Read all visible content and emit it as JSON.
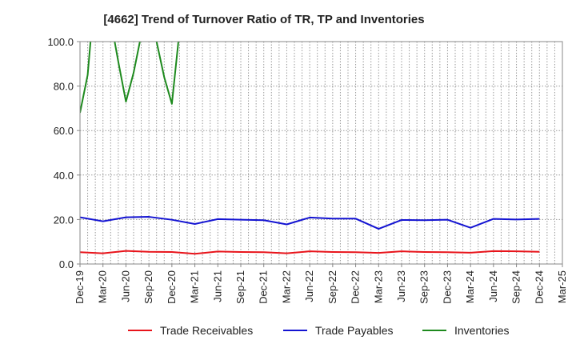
{
  "chart_data": {
    "type": "line",
    "title": "[4662]  Trend of Turnover Ratio of TR, TP and Inventories",
    "xlabel": "",
    "ylabel": "",
    "ylim": [
      0,
      100
    ],
    "yticks": [
      "0.0",
      "20.0",
      "40.0",
      "60.0",
      "80.0",
      "100.0"
    ],
    "x": [
      "Dec-19",
      "Jan-20",
      "Feb-20",
      "Mar-20",
      "Apr-20",
      "May-20",
      "Jun-20",
      "Jul-20",
      "Aug-20",
      "Sep-20",
      "Oct-20",
      "Nov-20",
      "Dec-20",
      "Jan-21",
      "Feb-21",
      "Mar-21",
      "Apr-21",
      "May-21",
      "Jun-21",
      "Jul-21",
      "Aug-21",
      "Sep-21",
      "Oct-21",
      "Nov-21",
      "Dec-21",
      "Jan-22",
      "Feb-22",
      "Mar-22",
      "Apr-22",
      "May-22",
      "Jun-22",
      "Jul-22",
      "Aug-22",
      "Sep-22",
      "Oct-22",
      "Nov-22",
      "Dec-22",
      "Jan-23",
      "Feb-23",
      "Mar-23",
      "Apr-23",
      "May-23",
      "Jun-23",
      "Jul-23",
      "Aug-23",
      "Sep-23",
      "Oct-23",
      "Nov-23",
      "Dec-23",
      "Jan-24",
      "Feb-24",
      "Mar-24",
      "Apr-24",
      "May-24",
      "Jun-24",
      "Jul-24",
      "Aug-24",
      "Sep-24",
      "Oct-24",
      "Nov-24",
      "Dec-24",
      "Jan-25",
      "Feb-25",
      "Mar-25"
    ],
    "xtick_labels": [
      "Dec-19",
      "Mar-20",
      "Jun-20",
      "Sep-20",
      "Dec-20",
      "Mar-21",
      "Jun-21",
      "Sep-21",
      "Dec-21",
      "Mar-22",
      "Jun-22",
      "Sep-22",
      "Dec-22",
      "Mar-23",
      "Jun-23",
      "Sep-23",
      "Dec-23",
      "Mar-24",
      "Jun-24",
      "Sep-24",
      "Dec-24",
      "Mar-25"
    ],
    "grid": true,
    "legend_position": "bottom",
    "series": [
      {
        "name": "Trade Receivables",
        "color": "#e8141b",
        "x": [
          "Dec-19",
          "Mar-20",
          "Jun-20",
          "Sep-20",
          "Dec-20",
          "Mar-21",
          "Jun-21",
          "Sep-21",
          "Dec-21",
          "Mar-22",
          "Jun-22",
          "Sep-22",
          "Dec-22",
          "Mar-23",
          "Jun-23",
          "Sep-23",
          "Dec-23",
          "Mar-24",
          "Jun-24",
          "Sep-24",
          "Dec-24"
        ],
        "values": [
          5.3,
          4.8,
          5.9,
          5.5,
          5.4,
          4.6,
          5.6,
          5.4,
          5.3,
          4.8,
          5.7,
          5.4,
          5.3,
          5.0,
          5.7,
          5.4,
          5.3,
          5.1,
          5.8,
          5.7,
          5.5
        ]
      },
      {
        "name": "Trade Payables",
        "color": "#1414d2",
        "x": [
          "Dec-19",
          "Mar-20",
          "Jun-20",
          "Sep-20",
          "Dec-20",
          "Mar-21",
          "Jun-21",
          "Sep-21",
          "Dec-21",
          "Mar-22",
          "Jun-22",
          "Sep-22",
          "Dec-22",
          "Mar-23",
          "Jun-23",
          "Sep-23",
          "Dec-23",
          "Mar-24",
          "Jun-24",
          "Sep-24",
          "Dec-24"
        ],
        "values": [
          21.0,
          19.2,
          21.0,
          21.2,
          19.9,
          18.0,
          20.2,
          19.9,
          19.7,
          17.8,
          20.9,
          20.4,
          20.4,
          15.8,
          19.8,
          19.7,
          19.9,
          16.3,
          20.3,
          20.0,
          20.3
        ]
      },
      {
        "name": "Inventories",
        "color": "#1e8a1e",
        "x": [
          "Dec-19",
          "Jan-20",
          "Feb-20",
          "Mar-20",
          "Apr-20",
          "May-20",
          "Jun-20",
          "Jul-20",
          "Aug-20",
          "Sep-20",
          "Oct-20",
          "Nov-20",
          "Dec-20",
          "Jan-21"
        ],
        "values": [
          68,
          85,
          125,
          140,
          110,
          91,
          73,
          86,
          103,
          118,
          100,
          84,
          72,
          105
        ]
      }
    ]
  }
}
